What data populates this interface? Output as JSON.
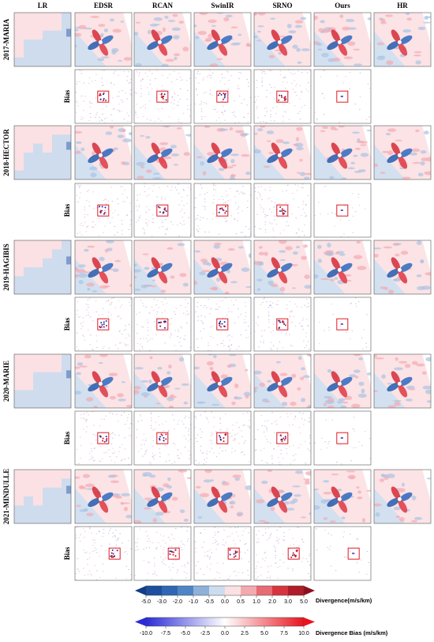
{
  "columns": [
    "LR",
    "EDSR",
    "RCAN",
    "SwinIR",
    "SRNO",
    "Ours",
    "HR"
  ],
  "rows": [
    {
      "label": "2017-MARIA",
      "bias_label": "Bias"
    },
    {
      "label": "2018-HECTOR",
      "bias_label": "Bias"
    },
    {
      "label": "2019-HAGIBIS",
      "bias_label": "Bias"
    },
    {
      "label": "2020-MARIE",
      "bias_label": "Bias"
    },
    {
      "label": "2021-MINDULLE",
      "bias_label": "Bias"
    }
  ],
  "colorbars": [
    {
      "label": "Divergence(m/s/km)",
      "ticks": [
        {
          "value": -5,
          "label": "-5.0"
        },
        {
          "value": -3,
          "label": "-3.0"
        },
        {
          "value": -2,
          "label": "-2.0"
        },
        {
          "value": -1,
          "label": "-1.0"
        },
        {
          "value": -0.5,
          "label": "-0.5"
        },
        {
          "value": 0,
          "label": "0.0"
        },
        {
          "value": 0.5,
          "label": "0.5"
        },
        {
          "value": 1,
          "label": "1.0"
        },
        {
          "value": 2,
          "label": "2.0"
        },
        {
          "value": 3,
          "label": "3.0"
        },
        {
          "value": 5,
          "label": "5.0"
        }
      ]
    },
    {
      "label": "Divergence Bias (m/s/km)",
      "ticks": [
        {
          "value": -10,
          "label": "-10.0"
        },
        {
          "value": -7.5,
          "label": "-7.5"
        },
        {
          "value": -5,
          "label": "-5.0"
        },
        {
          "value": -2.5,
          "label": "-2.5"
        },
        {
          "value": 0,
          "label": "0.0"
        },
        {
          "value": 2.5,
          "label": "2.5"
        },
        {
          "value": 5,
          "label": "5.0"
        },
        {
          "value": 7.5,
          "label": "7.5"
        },
        {
          "value": 10,
          "label": "10.0"
        }
      ]
    }
  ]
}
